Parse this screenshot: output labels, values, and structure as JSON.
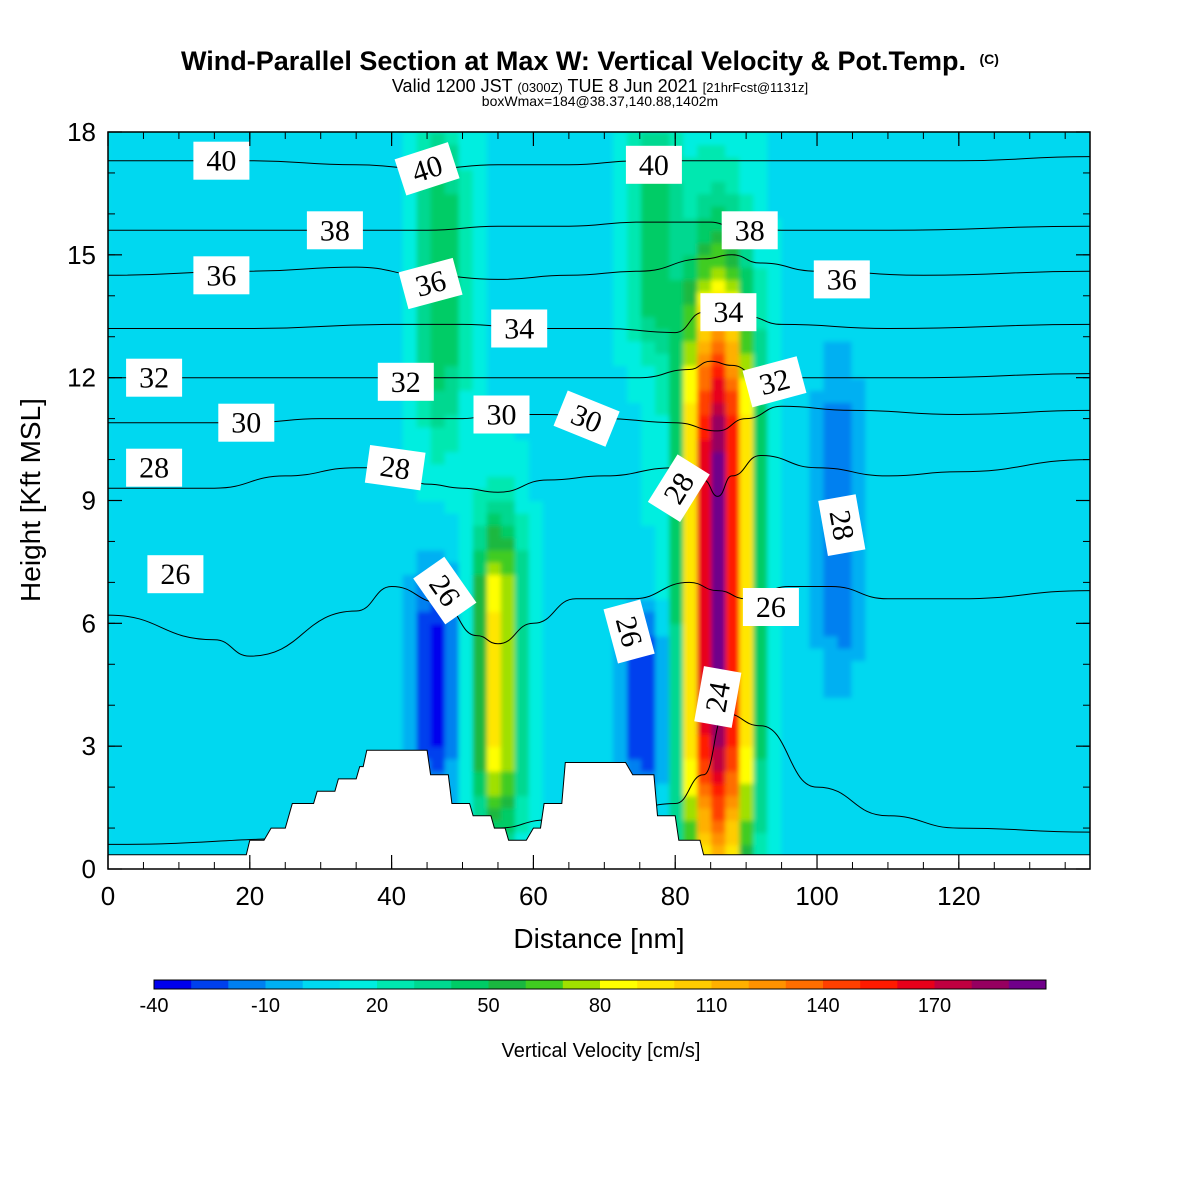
{
  "title": {
    "main": "Wind-Parallel Section at Max W: Vertical Velocity & Pot.Temp.",
    "copyright": "(C)",
    "valid_prefix": "Valid 1200 JST",
    "valid_utc": "(0300Z)",
    "valid_date": "TUE 8 Jun 2021",
    "valid_fcst": "[21hrFcst@1131z]",
    "box_info": "boxWmax=184@38.37,140.88,1402m"
  },
  "chart_data": {
    "type": "heatmap",
    "xlabel": "Distance [nm]",
    "ylabel": "Height [Kft MSL]",
    "xlim": [
      0,
      138.5
    ],
    "ylim": [
      0,
      18
    ],
    "x_ticks": [
      0,
      20,
      40,
      60,
      80,
      100,
      120
    ],
    "y_ticks": [
      0,
      3,
      6,
      9,
      12,
      15,
      18
    ],
    "colorbar": {
      "label": "Vertical Velocity [cm/s]",
      "tick_labels": [
        "-40",
        "-10",
        "20",
        "50",
        "80",
        "110",
        "140",
        "170"
      ],
      "levels": [
        -40,
        -30,
        -20,
        -10,
        0,
        10,
        20,
        30,
        40,
        50,
        60,
        70,
        80,
        90,
        100,
        110,
        120,
        130,
        140,
        150,
        160,
        170,
        180,
        190
      ],
      "colors": [
        "#0000ee",
        "#0040ee",
        "#0080f0",
        "#00b0f2",
        "#00d8f0",
        "#00eee0",
        "#00e8b0",
        "#00d890",
        "#00cc66",
        "#1ab840",
        "#40cc20",
        "#a0e000",
        "#ffff00",
        "#ffe600",
        "#ffcc00",
        "#ffb000",
        "#ff9200",
        "#ff6e00",
        "#ff4000",
        "#ff1a00",
        "#e8001a",
        "#c00040",
        "#960060",
        "#70008a"
      ]
    },
    "updrafts": [
      {
        "name": "main updraft",
        "x": 86,
        "y_base": 0.7,
        "y_top": 13.2,
        "peak_w": 184
      },
      {
        "name": "secondary updraft",
        "x": 55,
        "y_base": 1.5,
        "y_top": 8,
        "peak_w": 85
      },
      {
        "name": "upper updraft",
        "x": 77,
        "y_base": 13,
        "y_top": 18,
        "peak_w": 40
      },
      {
        "name": "upper updraft",
        "x": 47,
        "y_base": 11,
        "y_top": 18,
        "peak_w": 40
      }
    ],
    "downdrafts": [
      {
        "name": "downdraft",
        "x": 46,
        "y_base": 2,
        "y_top": 7,
        "min_w": -40
      },
      {
        "name": "downdraft",
        "x": 76,
        "y_base": 2,
        "y_top": 6,
        "min_w": -40
      },
      {
        "name": "downdraft",
        "x": 103,
        "y_base": 5,
        "y_top": 12,
        "min_w": -25
      }
    ],
    "terrain_top_kft": [
      [
        0,
        0.35
      ],
      [
        19.5,
        0.35
      ],
      [
        20,
        0.7
      ],
      [
        22,
        0.7
      ],
      [
        23,
        1.0
      ],
      [
        25,
        1.0
      ],
      [
        26,
        1.6
      ],
      [
        29,
        1.6
      ],
      [
        29.5,
        1.9
      ],
      [
        32,
        1.9
      ],
      [
        32.5,
        2.2
      ],
      [
        35,
        2.2
      ],
      [
        35.5,
        2.5
      ],
      [
        36,
        2.5
      ],
      [
        36.5,
        2.9
      ],
      [
        45,
        2.9
      ],
      [
        45.5,
        2.3
      ],
      [
        48,
        2.3
      ],
      [
        48.5,
        1.6
      ],
      [
        51,
        1.6
      ],
      [
        51.5,
        1.3
      ],
      [
        54,
        1.3
      ],
      [
        54.5,
        1.0
      ],
      [
        56,
        1.0
      ],
      [
        56.5,
        0.7
      ],
      [
        59,
        0.7
      ],
      [
        60,
        1.0
      ],
      [
        61,
        1.0
      ],
      [
        61.5,
        1.6
      ],
      [
        64,
        1.6
      ],
      [
        64.5,
        2.6
      ],
      [
        73,
        2.6
      ],
      [
        74,
        2.3
      ],
      [
        77,
        2.3
      ],
      [
        77.5,
        1.3
      ],
      [
        80,
        1.3
      ],
      [
        80.5,
        0.7
      ],
      [
        83.5,
        0.7
      ],
      [
        84,
        0.35
      ],
      [
        138.5,
        0.35
      ]
    ],
    "isentropes": {
      "units": "K",
      "levels": [
        {
          "label": "24",
          "pts": [
            [
              0,
              0.6
            ],
            [
              30,
              0.75
            ],
            [
              55,
              1.0
            ],
            [
              62,
              1.2
            ],
            [
              72,
              1.4
            ],
            [
              80,
              1.6
            ],
            [
              84,
              2.3
            ],
            [
              87,
              3.8
            ],
            [
              92,
              3.5
            ],
            [
              100,
              2.0
            ],
            [
              110,
              1.3
            ],
            [
              120,
              1.0
            ],
            [
              138.5,
              0.9
            ]
          ]
        },
        {
          "label": "26",
          "pts": [
            [
              0,
              6.2
            ],
            [
              15,
              5.6
            ],
            [
              20,
              5.2
            ],
            [
              35,
              6.3
            ],
            [
              40,
              6.9
            ],
            [
              47,
              6.5
            ],
            [
              52,
              5.7
            ],
            [
              55,
              5.5
            ],
            [
              60,
              6.0
            ],
            [
              66,
              6.6
            ],
            [
              74,
              6.6
            ],
            [
              82,
              7.0
            ],
            [
              86,
              6.8
            ],
            [
              90,
              6.6
            ],
            [
              96,
              6.9
            ],
            [
              102,
              6.9
            ],
            [
              110,
              6.6
            ],
            [
              120,
              6.6
            ],
            [
              138.5,
              6.8
            ]
          ]
        },
        {
          "label": "28",
          "pts": [
            [
              0,
              9.3
            ],
            [
              15,
              9.3
            ],
            [
              25,
              9.6
            ],
            [
              35,
              9.8
            ],
            [
              40,
              9.8
            ],
            [
              45,
              9.4
            ],
            [
              50,
              9.3
            ],
            [
              55,
              9.2
            ],
            [
              62,
              9.5
            ],
            [
              70,
              9.6
            ],
            [
              80,
              9.8
            ],
            [
              84,
              9.5
            ],
            [
              86,
              9.1
            ],
            [
              88,
              9.6
            ],
            [
              92,
              10.1
            ],
            [
              100,
              9.8
            ],
            [
              110,
              9.6
            ],
            [
              120,
              9.7
            ],
            [
              138.5,
              10.0
            ]
          ]
        },
        {
          "label": "30",
          "pts": [
            [
              0,
              10.9
            ],
            [
              20,
              10.9
            ],
            [
              30,
              11.0
            ],
            [
              40,
              11.0
            ],
            [
              50,
              11.0
            ],
            [
              55,
              11.1
            ],
            [
              62,
              11.1
            ],
            [
              70,
              11.0
            ],
            [
              80,
              10.9
            ],
            [
              86,
              10.7
            ],
            [
              90,
              11.0
            ],
            [
              95,
              11.3
            ],
            [
              105,
              11.2
            ],
            [
              120,
              11.1
            ],
            [
              138.5,
              11.2
            ]
          ]
        },
        {
          "label": "32",
          "pts": [
            [
              0,
              12.0
            ],
            [
              20,
              12.0
            ],
            [
              35,
              12.0
            ],
            [
              45,
              12.0
            ],
            [
              55,
              12.0
            ],
            [
              65,
              12.0
            ],
            [
              75,
              12.0
            ],
            [
              82,
              12.2
            ],
            [
              85,
              12.4
            ],
            [
              88,
              12.3
            ],
            [
              92,
              12.0
            ],
            [
              100,
              12.0
            ],
            [
              115,
              12.0
            ],
            [
              138.5,
              12.1
            ]
          ]
        },
        {
          "label": "34",
          "pts": [
            [
              0,
              13.2
            ],
            [
              20,
              13.2
            ],
            [
              40,
              13.3
            ],
            [
              50,
              13.3
            ],
            [
              60,
              13.2
            ],
            [
              70,
              13.2
            ],
            [
              80,
              13.1
            ],
            [
              84,
              13.6
            ],
            [
              87,
              13.8
            ],
            [
              90,
              13.5
            ],
            [
              95,
              13.3
            ],
            [
              110,
              13.2
            ],
            [
              138.5,
              13.3
            ]
          ]
        },
        {
          "label": "36",
          "pts": [
            [
              0,
              14.5
            ],
            [
              20,
              14.6
            ],
            [
              35,
              14.7
            ],
            [
              45,
              14.5
            ],
            [
              55,
              14.4
            ],
            [
              65,
              14.5
            ],
            [
              75,
              14.6
            ],
            [
              84,
              14.9
            ],
            [
              88,
              15.0
            ],
            [
              92,
              14.8
            ],
            [
              100,
              14.6
            ],
            [
              115,
              14.5
            ],
            [
              138.5,
              14.6
            ]
          ]
        },
        {
          "label": "38",
          "pts": [
            [
              0,
              15.6
            ],
            [
              20,
              15.6
            ],
            [
              35,
              15.6
            ],
            [
              45,
              15.6
            ],
            [
              55,
              15.7
            ],
            [
              65,
              15.7
            ],
            [
              75,
              15.8
            ],
            [
              85,
              15.8
            ],
            [
              88,
              15.7
            ],
            [
              95,
              15.6
            ],
            [
              110,
              15.6
            ],
            [
              138.5,
              15.7
            ]
          ]
        },
        {
          "label": "40",
          "pts": [
            [
              0,
              17.3
            ],
            [
              20,
              17.3
            ],
            [
              35,
              17.2
            ],
            [
              45,
              17.1
            ],
            [
              55,
              17.2
            ],
            [
              65,
              17.2
            ],
            [
              75,
              17.3
            ],
            [
              85,
              17.3
            ],
            [
              100,
              17.3
            ],
            [
              120,
              17.3
            ],
            [
              138.5,
              17.4
            ]
          ]
        }
      ]
    },
    "contour_labels": [
      {
        "text": "40",
        "x": 16,
        "y": 17.3,
        "rot": 0
      },
      {
        "text": "40",
        "x": 45,
        "y": 17.1,
        "rot": -18
      },
      {
        "text": "40",
        "x": 77,
        "y": 17.2,
        "rot": 0
      },
      {
        "text": "38",
        "x": 32,
        "y": 15.6,
        "rot": 0
      },
      {
        "text": "38",
        "x": 90.5,
        "y": 15.6,
        "rot": 0
      },
      {
        "text": "36",
        "x": 16,
        "y": 14.5,
        "rot": 0
      },
      {
        "text": "36",
        "x": 45.5,
        "y": 14.3,
        "rot": -15
      },
      {
        "text": "36",
        "x": 103.5,
        "y": 14.4,
        "rot": 0
      },
      {
        "text": "34",
        "x": 58,
        "y": 13.2,
        "rot": 0
      },
      {
        "text": "34",
        "x": 87.5,
        "y": 13.6,
        "rot": 0
      },
      {
        "text": "32",
        "x": 6.5,
        "y": 12.0,
        "rot": 0
      },
      {
        "text": "32",
        "x": 42,
        "y": 11.9,
        "rot": 0
      },
      {
        "text": "32",
        "x": 94,
        "y": 11.9,
        "rot": -15
      },
      {
        "text": "30",
        "x": 19.5,
        "y": 10.9,
        "rot": 0
      },
      {
        "text": "30",
        "x": 55.5,
        "y": 11.1,
        "rot": 0
      },
      {
        "text": "30",
        "x": 67.5,
        "y": 11.0,
        "rot": 22
      },
      {
        "text": "28",
        "x": 6.5,
        "y": 9.8,
        "rot": 0
      },
      {
        "text": "28",
        "x": 40.5,
        "y": 9.8,
        "rot": 8
      },
      {
        "text": "28",
        "x": 80.5,
        "y": 9.3,
        "rot": -58
      },
      {
        "text": "28",
        "x": 103.5,
        "y": 8.4,
        "rot": 80
      },
      {
        "text": "26",
        "x": 9.5,
        "y": 7.2,
        "rot": 0
      },
      {
        "text": "26",
        "x": 47.5,
        "y": 6.8,
        "rot": 55
      },
      {
        "text": "26",
        "x": 73.5,
        "y": 5.8,
        "rot": 75
      },
      {
        "text": "26",
        "x": 93.5,
        "y": 6.4,
        "rot": 0
      },
      {
        "text": "24",
        "x": 86,
        "y": 4.2,
        "rot": -80
      }
    ]
  }
}
